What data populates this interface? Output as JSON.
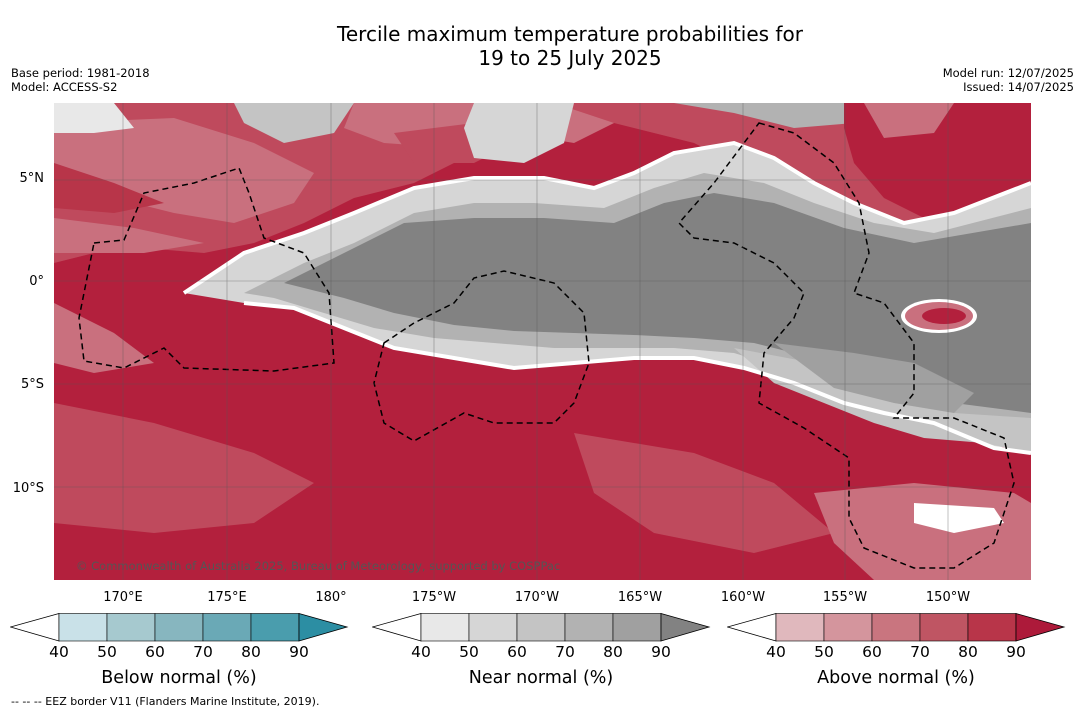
{
  "title_line1": "Tercile maximum temperature probabilities for",
  "title_line2": "19 to 25 July 2025",
  "base_period": "Base period: 1981-2018",
  "model": "Model: ACCESS-S2",
  "model_run": "Model run: 12/07/2025",
  "issued": "Issued: 14/07/2025",
  "latitude_labels": [
    "5°N",
    "0°",
    "5°S",
    "10°S"
  ],
  "longitude_labels": [
    "170°E",
    "175°E",
    "180°",
    "175°W",
    "170°W",
    "165°W",
    "160°W",
    "155°W",
    "150°W"
  ],
  "copyright": "© Commonwealth of Australia 2025, Bureau of Meteorology, supported by COSPPac",
  "legend": [
    {
      "title": "Below normal (%)",
      "ticks": [
        "40",
        "50",
        "60",
        "70",
        "80",
        "90"
      ],
      "colors": [
        "#c9e1e8",
        "#a6c9cf",
        "#87b6bf",
        "#6aa9b6",
        "#4a9dad",
        "#2c8ea3"
      ]
    },
    {
      "title": "Near normal (%)",
      "ticks": [
        "40",
        "50",
        "60",
        "70",
        "80",
        "90"
      ],
      "colors": [
        "#e8e8e8",
        "#d6d6d6",
        "#c4c4c4",
        "#b2b2b2",
        "#a0a0a0",
        "#828282"
      ]
    },
    {
      "title": "Above normal (%)",
      "ticks": [
        "40",
        "50",
        "60",
        "70",
        "80",
        "90"
      ],
      "colors": [
        "#e0b8bd",
        "#d4959d",
        "#c9757f",
        "#bf5563",
        "#b83549",
        "#ad1a3a"
      ]
    }
  ],
  "eez_note": "--  --  -- EEZ border V11 (Flanders Marine Institute, 2019)."
}
